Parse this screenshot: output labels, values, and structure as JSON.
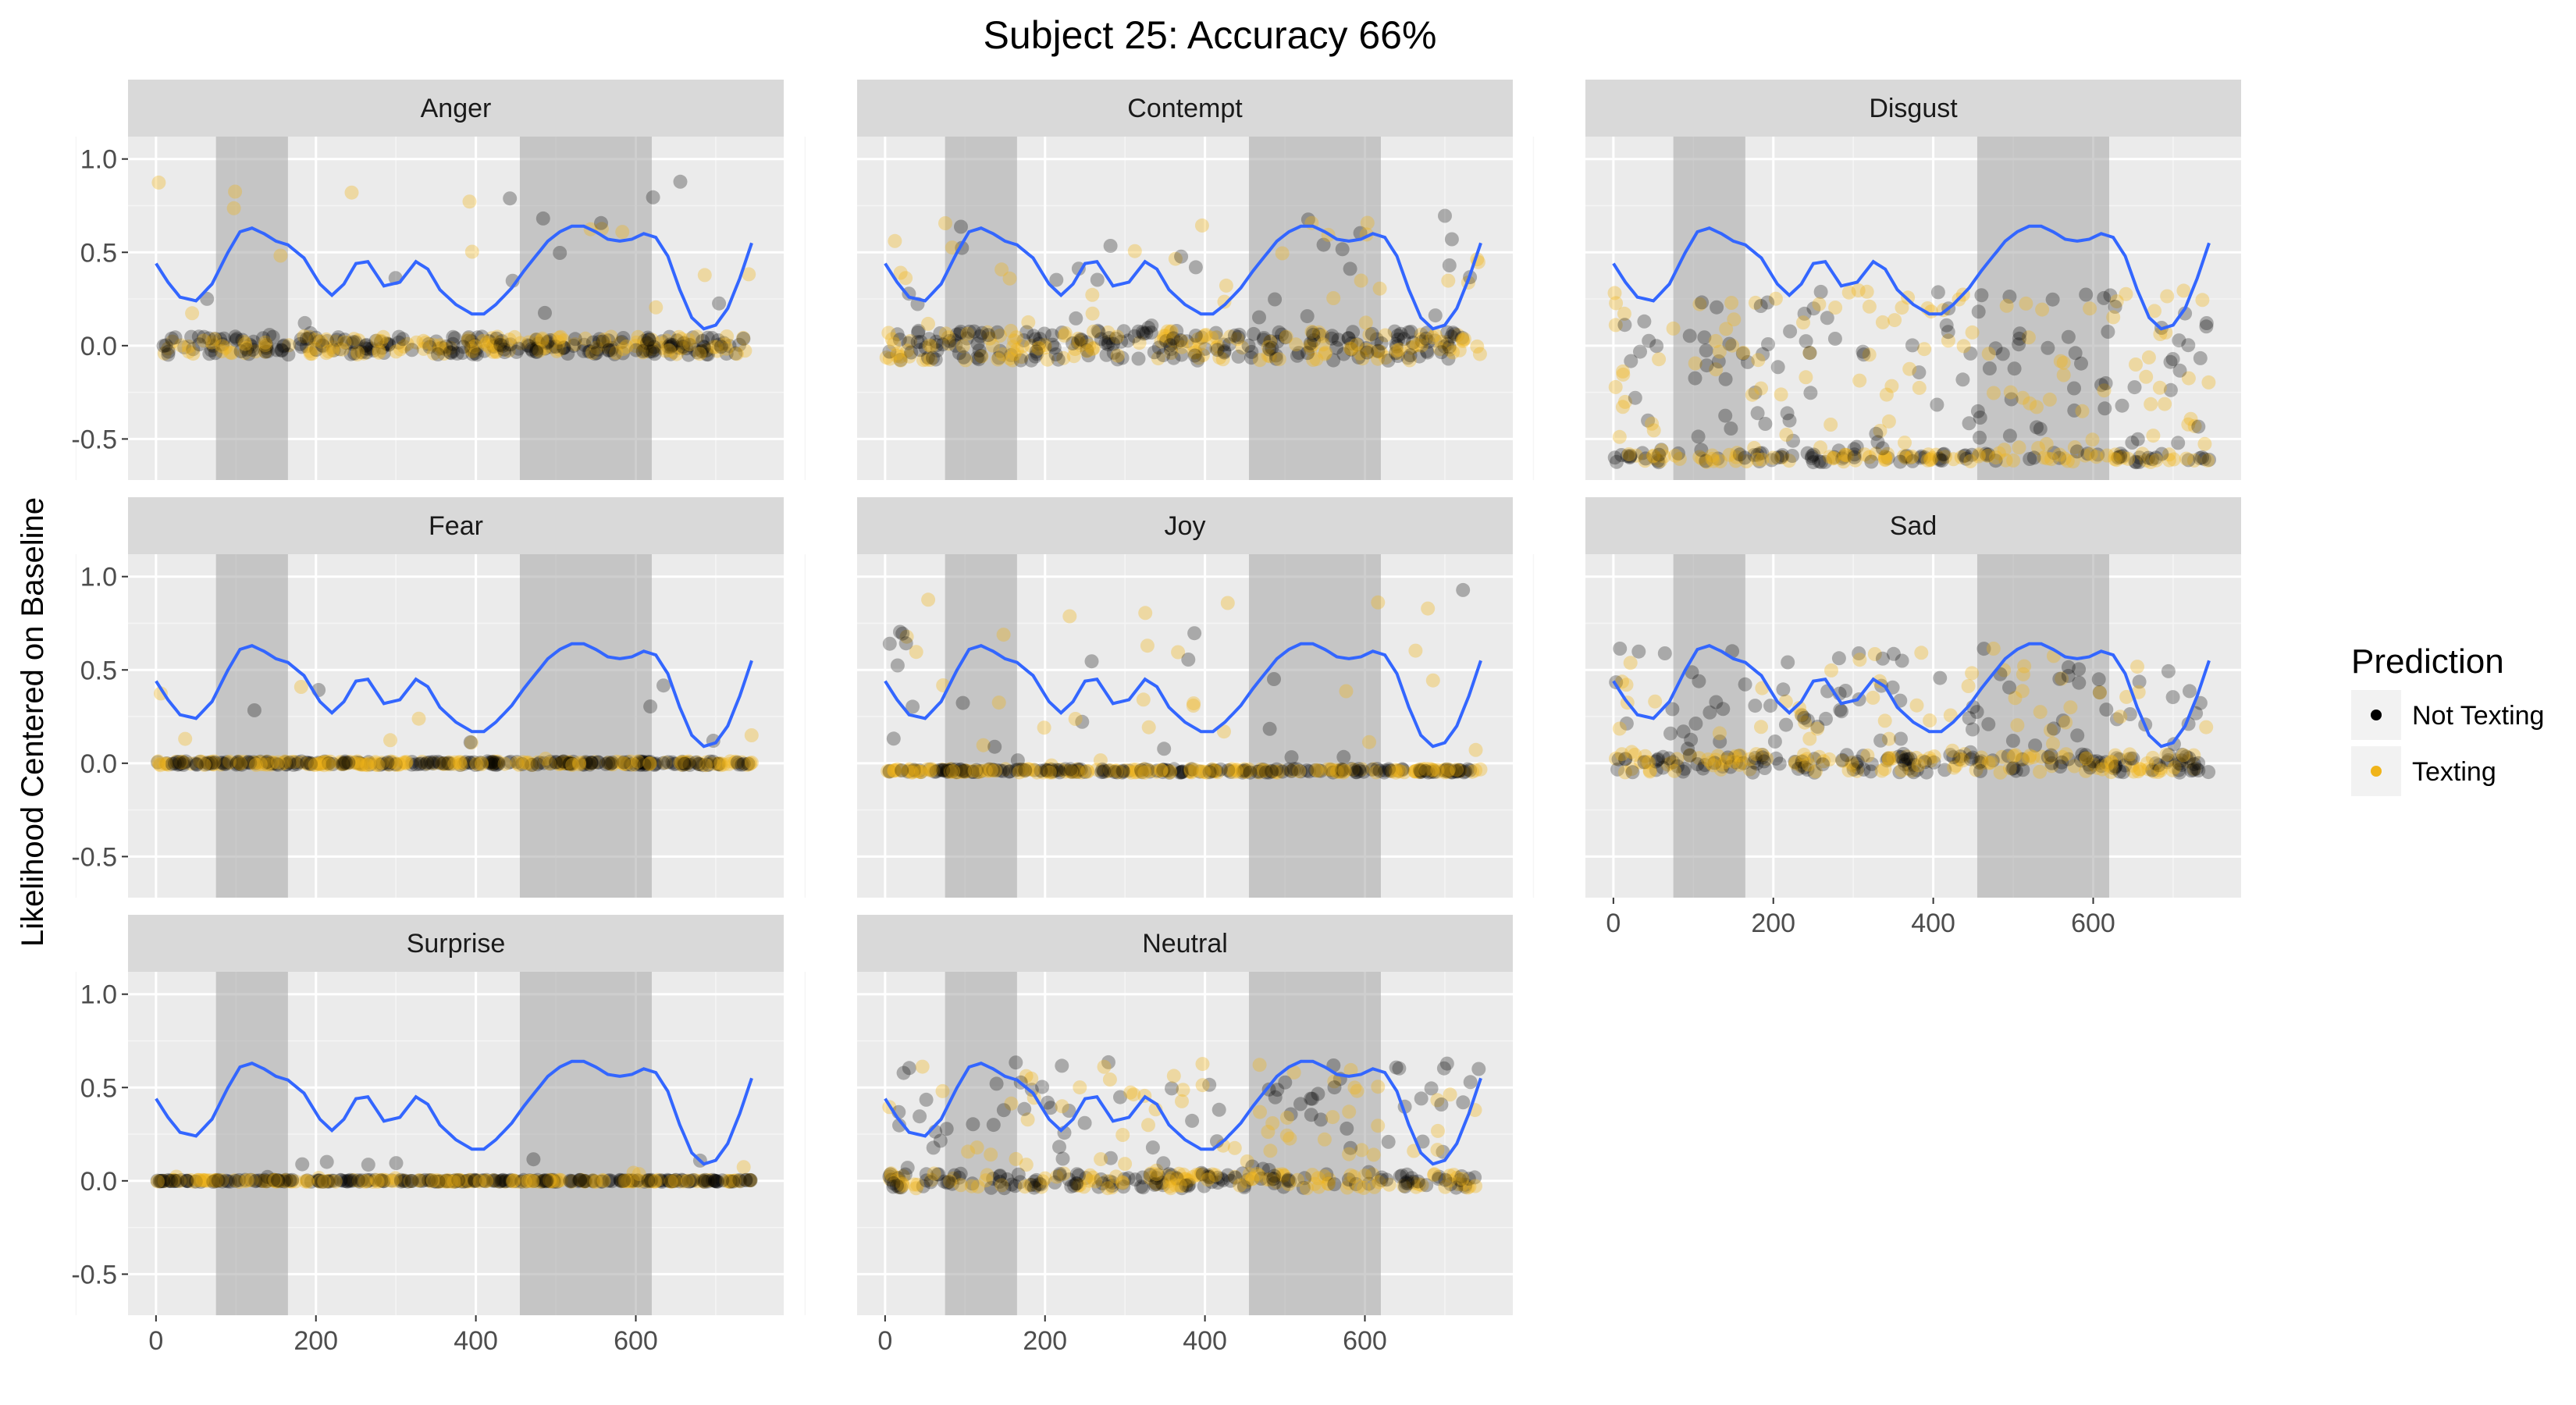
{
  "chart_data": {
    "type": "scatter",
    "title": "Subject 25: Accuracy 66%",
    "ylabel": "Likelihood Centered on Baseline",
    "xlabel": "",
    "facets": [
      "Anger",
      "Contempt",
      "Disgust",
      "Fear",
      "Joy",
      "Sad",
      "Surprise",
      "Neutral"
    ],
    "xlim": [
      -35,
      785
    ],
    "ylim": [
      -0.72,
      1.12
    ],
    "x_ticks": [
      0,
      200,
      400,
      600
    ],
    "x_tick_labels": [
      "0",
      "200",
      "400",
      "600"
    ],
    "y_ticks": [
      1.0,
      0.5,
      0.0,
      -0.5
    ],
    "y_tick_labels": [
      "1.0",
      "0.5",
      "0.0",
      "-0.5"
    ],
    "shaded_intervals": [
      [
        75,
        165
      ],
      [
        455,
        620
      ]
    ],
    "trend_line": {
      "color": "#3366ff",
      "x": [
        0,
        15,
        30,
        50,
        70,
        90,
        105,
        120,
        135,
        150,
        165,
        185,
        205,
        220,
        235,
        250,
        265,
        285,
        305,
        325,
        340,
        355,
        375,
        395,
        410,
        425,
        445,
        460,
        475,
        490,
        505,
        520,
        535,
        550,
        565,
        580,
        595,
        610,
        625,
        640,
        655,
        670,
        685,
        700,
        715,
        730,
        745
      ],
      "y": [
        0.44,
        0.34,
        0.26,
        0.24,
        0.33,
        0.5,
        0.61,
        0.63,
        0.6,
        0.56,
        0.54,
        0.47,
        0.33,
        0.27,
        0.33,
        0.44,
        0.45,
        0.32,
        0.34,
        0.45,
        0.41,
        0.3,
        0.22,
        0.17,
        0.17,
        0.22,
        0.31,
        0.4,
        0.48,
        0.56,
        0.61,
        0.64,
        0.64,
        0.61,
        0.57,
        0.56,
        0.57,
        0.6,
        0.58,
        0.48,
        0.3,
        0.15,
        0.09,
        0.11,
        0.2,
        0.36,
        0.55
      ]
    },
    "legend": {
      "title": "Prediction",
      "position": "right",
      "entries": [
        {
          "label": "Not Texting",
          "color": "#000000"
        },
        {
          "label": "Texting",
          "color": "#f0b41a"
        }
      ]
    },
    "grid": true,
    "background": "#ebebeb",
    "strip_background": "#d9d9d9",
    "shade_color": "#a6a6a6",
    "n_points_per_facet": 400
  }
}
